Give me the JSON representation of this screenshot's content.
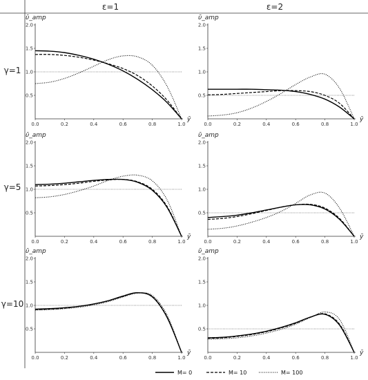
{
  "figure": {
    "column_headers": [
      "ε=1",
      "ε=2"
    ],
    "row_headers": [
      "γ=1",
      "γ=5",
      "γ=10"
    ]
  },
  "legend": [
    {
      "label": "M= 0",
      "style": "solid"
    },
    {
      "label": "M= 10",
      "style": "dashed"
    },
    {
      "label": "M= 100",
      "style": "dotted"
    }
  ],
  "chart_data": [
    {
      "type": "line",
      "row": 0,
      "col": 0,
      "ylabel": "ῡ_amp",
      "xlabel": "ȳ",
      "xlim": [
        0,
        1
      ],
      "ylim": [
        0,
        2
      ],
      "reference_line": 1.0,
      "xticks": [
        "0.0",
        "0.2",
        "0.4",
        "0.6",
        "0.8",
        "1.0"
      ],
      "yticks": [
        "0.5",
        "1.0",
        "1.5",
        "2.0"
      ],
      "series": [
        {
          "name": "M= 0",
          "x": [
            0,
            0.1,
            0.2,
            0.3,
            0.4,
            0.5,
            0.6,
            0.7,
            0.8,
            0.9,
            1.0
          ],
          "y": [
            1.45,
            1.44,
            1.41,
            1.35,
            1.27,
            1.16,
            1.02,
            0.84,
            0.62,
            0.35,
            0.0
          ]
        },
        {
          "name": "M= 10",
          "x": [
            0,
            0.1,
            0.2,
            0.3,
            0.4,
            0.5,
            0.6,
            0.7,
            0.8,
            0.9,
            1.0
          ],
          "y": [
            1.37,
            1.37,
            1.35,
            1.31,
            1.25,
            1.17,
            1.07,
            0.92,
            0.7,
            0.4,
            0.0
          ]
        },
        {
          "name": "M= 100",
          "x": [
            0,
            0.1,
            0.2,
            0.3,
            0.4,
            0.5,
            0.6,
            0.7,
            0.8,
            0.9,
            1.0
          ],
          "y": [
            0.75,
            0.78,
            0.86,
            0.98,
            1.12,
            1.26,
            1.34,
            1.32,
            1.14,
            0.7,
            0.0
          ]
        }
      ]
    },
    {
      "type": "line",
      "row": 0,
      "col": 1,
      "ylabel": "ῡ_amp",
      "xlabel": "ȳ",
      "xlim": [
        0,
        1
      ],
      "ylim": [
        0,
        2
      ],
      "reference_line": 0.5,
      "xticks": [
        "0.0",
        "0.2",
        "0.4",
        "0.6",
        "0.8",
        "1.0"
      ],
      "yticks": [
        "0.5",
        "1.0",
        "1.5",
        "2.0"
      ],
      "series": [
        {
          "name": "M= 0",
          "x": [
            0,
            0.1,
            0.2,
            0.3,
            0.4,
            0.5,
            0.6,
            0.7,
            0.8,
            0.9,
            1.0
          ],
          "y": [
            0.63,
            0.63,
            0.63,
            0.63,
            0.62,
            0.61,
            0.58,
            0.52,
            0.42,
            0.25,
            0.0
          ]
        },
        {
          "name": "M= 10",
          "x": [
            0,
            0.1,
            0.2,
            0.3,
            0.4,
            0.5,
            0.6,
            0.7,
            0.8,
            0.9,
            1.0
          ],
          "y": [
            0.51,
            0.52,
            0.54,
            0.56,
            0.58,
            0.6,
            0.6,
            0.58,
            0.5,
            0.33,
            0.0
          ]
        },
        {
          "name": "M= 100",
          "x": [
            0,
            0.1,
            0.2,
            0.3,
            0.4,
            0.5,
            0.6,
            0.7,
            0.8,
            0.9,
            1.0
          ],
          "y": [
            0.06,
            0.08,
            0.13,
            0.23,
            0.37,
            0.54,
            0.73,
            0.89,
            0.95,
            0.65,
            0.0
          ]
        }
      ]
    },
    {
      "type": "line",
      "row": 1,
      "col": 0,
      "ylabel": "ῡ_amp",
      "xlabel": "ȳ",
      "xlim": [
        0,
        1
      ],
      "ylim": [
        0,
        2
      ],
      "reference_line": 1.0,
      "xticks": [
        "0.0",
        "0.2",
        "0.4",
        "0.6",
        "0.8",
        "1.0"
      ],
      "yticks": [
        "0.5",
        "1.0",
        "1.5",
        "2.0"
      ],
      "series": [
        {
          "name": "M= 0",
          "x": [
            0,
            0.1,
            0.2,
            0.3,
            0.4,
            0.5,
            0.6,
            0.7,
            0.8,
            0.9,
            1.0
          ],
          "y": [
            1.1,
            1.11,
            1.13,
            1.16,
            1.19,
            1.21,
            1.21,
            1.15,
            0.98,
            0.62,
            0.0
          ]
        },
        {
          "name": "M= 10",
          "x": [
            0,
            0.1,
            0.2,
            0.3,
            0.4,
            0.5,
            0.6,
            0.7,
            0.8,
            0.9,
            1.0
          ],
          "y": [
            1.07,
            1.08,
            1.1,
            1.13,
            1.17,
            1.2,
            1.21,
            1.16,
            1.0,
            0.64,
            0.0
          ]
        },
        {
          "name": "M= 100",
          "x": [
            0,
            0.1,
            0.2,
            0.3,
            0.4,
            0.5,
            0.6,
            0.7,
            0.8,
            0.9,
            1.0
          ],
          "y": [
            0.82,
            0.84,
            0.89,
            0.97,
            1.07,
            1.19,
            1.28,
            1.3,
            1.18,
            0.78,
            0.0
          ]
        }
      ]
    },
    {
      "type": "line",
      "row": 1,
      "col": 1,
      "ylabel": "ῡ_amp",
      "xlabel": "ȳ",
      "xlim": [
        0,
        1
      ],
      "ylim": [
        0,
        2
      ],
      "reference_line": 0.5,
      "xticks": [
        "0.0",
        "0.2",
        "0.4",
        "0.6",
        "0.8",
        "1.0"
      ],
      "yticks": [
        "0.5",
        "1.0",
        "1.5",
        "2.0"
      ],
      "series": [
        {
          "name": "M= 0",
          "x": [
            0,
            0.1,
            0.2,
            0.3,
            0.4,
            0.5,
            0.6,
            0.7,
            0.8,
            0.9,
            1.0
          ],
          "y": [
            0.4,
            0.42,
            0.45,
            0.5,
            0.56,
            0.62,
            0.67,
            0.67,
            0.58,
            0.36,
            0.0
          ]
        },
        {
          "name": "M= 10",
          "x": [
            0,
            0.1,
            0.2,
            0.3,
            0.4,
            0.5,
            0.6,
            0.7,
            0.8,
            0.9,
            1.0
          ],
          "y": [
            0.36,
            0.38,
            0.42,
            0.48,
            0.55,
            0.62,
            0.67,
            0.68,
            0.6,
            0.38,
            0.0
          ]
        },
        {
          "name": "M= 100",
          "x": [
            0,
            0.1,
            0.2,
            0.3,
            0.4,
            0.5,
            0.6,
            0.7,
            0.8,
            0.9,
            1.0
          ],
          "y": [
            0.15,
            0.17,
            0.22,
            0.3,
            0.4,
            0.53,
            0.7,
            0.88,
            0.92,
            0.6,
            0.0
          ]
        }
      ]
    },
    {
      "type": "line",
      "row": 2,
      "col": 0,
      "ylabel": "ῡ_amp",
      "xlabel": "ȳ",
      "xlim": [
        0,
        1
      ],
      "ylim": [
        0,
        2
      ],
      "reference_line": 1.0,
      "xticks": [
        "0.0",
        "0.2",
        "0.4",
        "0.6",
        "0.8",
        "1.0"
      ],
      "yticks": [
        "0.5",
        "1.0",
        "1.5",
        "2.0"
      ],
      "series": [
        {
          "name": "M= 0",
          "x": [
            0,
            0.1,
            0.2,
            0.3,
            0.4,
            0.5,
            0.6,
            0.7,
            0.8,
            0.9,
            1.0
          ],
          "y": [
            0.92,
            0.93,
            0.95,
            0.98,
            1.03,
            1.1,
            1.2,
            1.27,
            1.18,
            0.75,
            0.0
          ]
        },
        {
          "name": "M= 10",
          "x": [
            0,
            0.1,
            0.2,
            0.3,
            0.4,
            0.5,
            0.6,
            0.7,
            0.8,
            0.9,
            1.0
          ],
          "y": [
            0.91,
            0.92,
            0.94,
            0.98,
            1.03,
            1.1,
            1.19,
            1.27,
            1.19,
            0.76,
            0.0
          ]
        },
        {
          "name": "M= 100",
          "x": [
            0,
            0.1,
            0.2,
            0.3,
            0.4,
            0.5,
            0.6,
            0.7,
            0.8,
            0.9,
            1.0
          ],
          "y": [
            0.9,
            0.91,
            0.93,
            0.96,
            1.01,
            1.08,
            1.18,
            1.26,
            1.21,
            0.8,
            0.0
          ]
        }
      ]
    },
    {
      "type": "line",
      "row": 2,
      "col": 1,
      "ylabel": "ῡ_amp",
      "xlabel": "ȳ",
      "xlim": [
        0,
        1
      ],
      "ylim": [
        0,
        2
      ],
      "reference_line": 0.5,
      "xticks": [
        "0.0",
        "0.2",
        "0.4",
        "0.6",
        "0.8",
        "1.0"
      ],
      "yticks": [
        "0.5",
        "1.0",
        "1.5",
        "2.0"
      ],
      "series": [
        {
          "name": "M= 0",
          "x": [
            0,
            0.1,
            0.2,
            0.3,
            0.4,
            0.5,
            0.6,
            0.7,
            0.8,
            0.9,
            1.0
          ],
          "y": [
            0.31,
            0.32,
            0.35,
            0.39,
            0.45,
            0.53,
            0.63,
            0.75,
            0.81,
            0.58,
            0.0
          ]
        },
        {
          "name": "M= 10",
          "x": [
            0,
            0.1,
            0.2,
            0.3,
            0.4,
            0.5,
            0.6,
            0.7,
            0.8,
            0.9,
            1.0
          ],
          "y": [
            0.3,
            0.31,
            0.34,
            0.38,
            0.44,
            0.52,
            0.62,
            0.75,
            0.82,
            0.6,
            0.0
          ]
        },
        {
          "name": "M= 100",
          "x": [
            0,
            0.1,
            0.2,
            0.3,
            0.4,
            0.5,
            0.6,
            0.7,
            0.8,
            0.9,
            1.0
          ],
          "y": [
            0.28,
            0.29,
            0.31,
            0.35,
            0.41,
            0.49,
            0.6,
            0.74,
            0.86,
            0.7,
            0.0
          ]
        }
      ]
    }
  ]
}
